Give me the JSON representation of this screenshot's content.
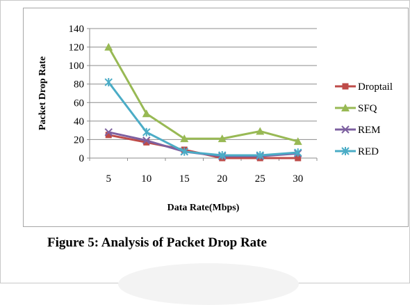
{
  "caption": "Figure 5: Analysis of Packet Drop Rate",
  "chart_data": {
    "type": "line",
    "title": "",
    "xlabel": "Data Rate(Mbps)",
    "ylabel": "Packet Drop Rate",
    "categories": [
      "5",
      "10",
      "15",
      "20",
      "25",
      "30"
    ],
    "ylim": [
      0,
      140
    ],
    "yticks": [
      "0",
      "20",
      "40",
      "60",
      "80",
      "100",
      "120",
      "140"
    ],
    "grid": true,
    "legend_position": "right",
    "series": [
      {
        "name": "Droptail",
        "values": [
          25,
          17,
          9,
          0,
          0,
          0
        ],
        "color": "#be4b48",
        "marker": "square"
      },
      {
        "name": "SFQ",
        "values": [
          120,
          48,
          21,
          21,
          29,
          18
        ],
        "color": "#98b954",
        "marker": "triangle"
      },
      {
        "name": "REM",
        "values": [
          28,
          19,
          7,
          2,
          2,
          5
        ],
        "color": "#7d60a0",
        "marker": "x"
      },
      {
        "name": "RED",
        "values": [
          82,
          28,
          7,
          3,
          3,
          6
        ],
        "color": "#4bacc6",
        "marker": "star"
      }
    ]
  }
}
